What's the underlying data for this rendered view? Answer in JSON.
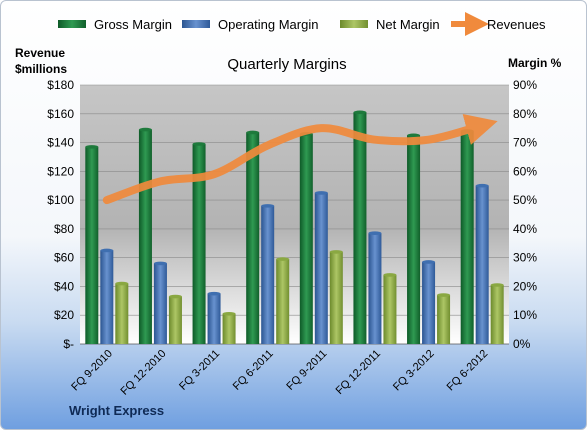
{
  "chart_data": {
    "type": "bar",
    "title": "Quarterly Margins",
    "left_axis_label": [
      "Revenue",
      "$millions"
    ],
    "right_axis_label": "Margin %",
    "footer": "Wright Express",
    "categories": [
      "FQ 9-2010",
      "FQ 12-2010",
      "FQ 3-2011",
      "FQ 6-2011",
      "FQ 9-2011",
      "FQ 12-2011",
      "FQ 3-2012",
      "FQ 6-2012"
    ],
    "left_ticks": [
      "$-",
      "$20",
      "$40",
      "$60",
      "$80",
      "$100",
      "$120",
      "$140",
      "$160",
      "$180"
    ],
    "right_ticks": [
      "0%",
      "10%",
      "20%",
      "30%",
      "40%",
      "50%",
      "60%",
      "70%",
      "80%",
      "90%"
    ],
    "ylim_left": [
      0,
      180
    ],
    "ylim_right": [
      0,
      90
    ],
    "legend_position": "top",
    "series": [
      {
        "name": "Gross Margin",
        "kind": "bar",
        "axis": "right",
        "color": "#1e7a3c",
        "values": [
          68.5,
          74.5,
          69.5,
          73.5,
          73,
          80.5,
          72.5,
          74
        ]
      },
      {
        "name": "Operating Margin",
        "kind": "bar",
        "axis": "right",
        "color": "#3f6fb0",
        "values": [
          32.5,
          28,
          17.5,
          48,
          52.5,
          38.5,
          28.5,
          55
        ]
      },
      {
        "name": "Net Margin",
        "kind": "bar",
        "axis": "right",
        "color": "#8aa842",
        "values": [
          21,
          16.5,
          10.5,
          29.5,
          32,
          24,
          17,
          20.5
        ]
      },
      {
        "name": "Revenues",
        "kind": "line",
        "axis": "left",
        "color": "#f08a3c",
        "values": [
          100,
          113,
          118,
          138,
          150,
          142,
          142,
          152
        ]
      }
    ]
  }
}
